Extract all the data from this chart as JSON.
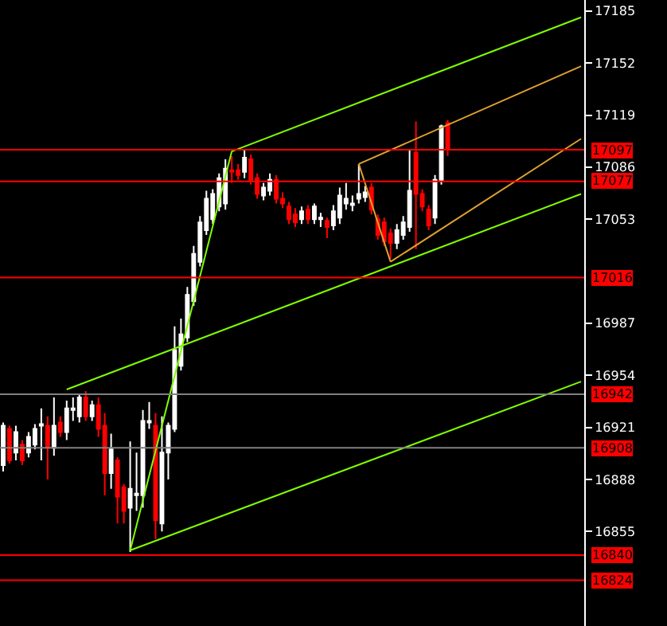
{
  "chart_data": {
    "type": "candlestick",
    "categories": [
      null,
      null,
      null,
      null,
      null,
      null,
      null,
      null,
      null,
      null,
      null,
      null,
      null,
      null,
      null,
      null,
      null,
      null,
      null,
      null,
      null,
      null,
      null,
      null,
      null,
      null,
      null,
      null,
      null,
      null,
      null,
      null,
      null,
      null,
      null,
      null,
      null,
      null,
      null,
      null,
      null,
      null,
      null,
      null,
      null,
      null,
      null,
      null,
      null,
      null,
      null,
      null,
      null,
      null,
      null,
      null,
      null,
      null,
      null,
      null,
      null,
      null,
      null,
      null,
      null,
      null,
      null,
      null,
      null,
      null,
      null,
      null,
      null,
      null,
      null,
      null,
      null,
      null,
      null,
      null,
      null,
      null,
      null,
      null,
      null,
      null,
      null,
      null,
      null,
      null,
      null,
      null
    ],
    "colors": [
      "#ffffff",
      "#ff0000",
      "#ffffff",
      "#ff0000",
      "#ffffff",
      "#ffffff",
      "#ffffff",
      "#ff0000",
      "#ffffff",
      "#ff0000",
      "#ffffff",
      "#ffffff",
      "#ffffff",
      "#ff0000",
      "#ffffff",
      "#ff0000",
      "#ff0000",
      "#ffffff",
      "#ff0000",
      "#ff0000",
      "#ffffff",
      "#ffffff",
      "#ffffff",
      "#ffffff",
      "#ff0000",
      "#ffffff",
      "#ffffff",
      "#ffffff",
      "#ffffff",
      "#ffffff",
      "#ffffff",
      "#ffffff",
      "#ffffff",
      "#ffffff",
      "#ffffff",
      "#ffffff",
      "#ff0000",
      "#ff0000",
      "#ffffff",
      "#ff0000",
      "#ff0000",
      "#ffffff",
      "#ffffff",
      "#ff0000",
      "#ff0000",
      "#ff0000",
      "#ff0000",
      "#ffffff",
      "#ff0000",
      "#ffffff",
      "#ffffff",
      "#ff0000",
      "#ffffff",
      "#ffffff",
      "#ffffff",
      "#ffffff",
      "#ffffff",
      "#ffffff",
      "#ff0000",
      "#ff0000",
      "#ff0000",
      "#ff0000",
      "#ffffff",
      "#ffffff",
      "#ffffff",
      "#ff0000",
      "#ff0000",
      "#ff0000",
      "#ffffff",
      "#ffffff",
      "#ff0000",
      null,
      null,
      null,
      null,
      null,
      null,
      null,
      null,
      null,
      null,
      null,
      null,
      null,
      null,
      null,
      null,
      null,
      null,
      null,
      null,
      null
    ],
    "ohlc": [
      [
        16897,
        16924,
        16893,
        16922
      ],
      [
        16920,
        16922,
        16898,
        16900
      ],
      [
        16905,
        16922,
        16900,
        16918
      ],
      [
        16910,
        16913,
        16897,
        16900
      ],
      [
        16905,
        16918,
        16902,
        16915
      ],
      [
        16910,
        16923,
        16907,
        16920
      ],
      [
        16922,
        16933,
        16900,
        16923
      ],
      [
        16922,
        16928,
        16888,
        16908
      ],
      [
        16908,
        16940,
        16903,
        16922
      ],
      [
        16924,
        16928,
        16915,
        16918
      ],
      [
        16918,
        16938,
        16913,
        16933
      ],
      [
        16932,
        16940,
        16925,
        16933
      ],
      [
        16928,
        16942,
        16924,
        16940
      ],
      [
        16940,
        16944,
        16925,
        16928
      ],
      [
        16928,
        16938,
        16925,
        16935
      ],
      [
        16935,
        16940,
        16915,
        16920
      ],
      [
        16922,
        16930,
        16878,
        16892
      ],
      [
        16892,
        16917,
        16882,
        16907
      ],
      [
        16900,
        16902,
        16860,
        16877
      ],
      [
        16883,
        16885,
        16860,
        16868
      ],
      [
        16870,
        16912,
        16842,
        16882
      ],
      [
        16878,
        16905,
        16868,
        16879
      ],
      [
        16878,
        16932,
        16870,
        16925
      ],
      [
        16924,
        16937,
        16920,
        16925
      ],
      [
        16922,
        16930,
        16850,
        16862
      ],
      [
        16860,
        16928,
        16855,
        16905
      ],
      [
        16905,
        16924,
        16888,
        16922
      ],
      [
        16920,
        16985,
        16918,
        16970
      ],
      [
        16960,
        16990,
        16957,
        16980
      ],
      [
        16978,
        17010,
        16975,
        17005
      ],
      [
        17001,
        17036,
        16998,
        17031
      ],
      [
        17026,
        17055,
        17023,
        17051
      ],
      [
        17046,
        17071,
        17043,
        17066
      ],
      [
        17053,
        17072,
        17050,
        17069
      ],
      [
        17061,
        17082,
        17058,
        17079
      ],
      [
        17063,
        17091,
        17059,
        17085
      ],
      [
        17084,
        17093,
        17076,
        17083
      ],
      [
        17084,
        17088,
        17078,
        17081
      ],
      [
        17083,
        17097,
        17079,
        17092
      ],
      [
        17091,
        17094,
        17075,
        17078
      ],
      [
        17079,
        17082,
        17066,
        17069
      ],
      [
        17068,
        17076,
        17065,
        17073
      ],
      [
        17071,
        17082,
        17068,
        17078
      ],
      [
        17078,
        17081,
        17063,
        17066
      ],
      [
        17066,
        17070,
        17060,
        17063
      ],
      [
        17061,
        17064,
        17050,
        17053
      ],
      [
        17056,
        17060,
        17048,
        17051
      ],
      [
        17053,
        17061,
        17050,
        17058
      ],
      [
        17059,
        17062,
        17050,
        17053
      ],
      [
        17053,
        17063,
        17050,
        17061
      ],
      [
        17053,
        17057,
        17048,
        17054
      ],
      [
        17052,
        17054,
        17041,
        17048
      ],
      [
        17049,
        17062,
        17046,
        17058
      ],
      [
        17054,
        17073,
        17050,
        17068
      ],
      [
        17063,
        17076,
        17059,
        17066
      ],
      [
        17062,
        17068,
        17058,
        17063
      ],
      [
        17066,
        17088,
        17063,
        17069
      ],
      [
        17067,
        17074,
        17064,
        17070
      ],
      [
        17073,
        17076,
        17056,
        17059
      ],
      [
        17053,
        17056,
        17040,
        17043
      ],
      [
        17051,
        17054,
        17036,
        17039
      ],
      [
        17044,
        17047,
        17028,
        17038
      ],
      [
        17038,
        17050,
        17034,
        17046
      ],
      [
        17043,
        17055,
        17040,
        17051
      ],
      [
        17048,
        17097,
        17045,
        17071
      ],
      [
        17095,
        17115,
        17034,
        17069
      ],
      [
        17069,
        17072,
        17058,
        17061
      ],
      [
        17059,
        17062,
        17046,
        17049
      ],
      [
        17054,
        17081,
        17050,
        17078
      ],
      [
        17078,
        17113,
        17075,
        17112
      ],
      [
        17114,
        17116,
        17093,
        17097
      ],
      null,
      null,
      null,
      null,
      null,
      null,
      null,
      null,
      null,
      null,
      null,
      null,
      null,
      null,
      null,
      null,
      null,
      null,
      null,
      null,
      null
    ],
    "series": [
      {
        "type": "line",
        "color": "#7fff00",
        "values": [
          null,
          null,
          null,
          null,
          null,
          null,
          null,
          null,
          null,
          null,
          null,
          null,
          null,
          null,
          null,
          null,
          null,
          null,
          null,
          null,
          16843,
          null,
          null,
          null,
          null,
          null,
          null,
          null,
          null,
          null,
          null,
          null,
          null,
          null,
          null,
          null,
          17096,
          null,
          null,
          null,
          null,
          null,
          null,
          null,
          null,
          null,
          null,
          null,
          null,
          null,
          null,
          null,
          null,
          null,
          null,
          null,
          null,
          null,
          null,
          null,
          null,
          null,
          null,
          null,
          null,
          null,
          null,
          null,
          null,
          null,
          null,
          null,
          null,
          null,
          null,
          null,
          null,
          null,
          null,
          null,
          null,
          null,
          null,
          null,
          null,
          null,
          null,
          null,
          null,
          null,
          null,
          null
        ]
      },
      {
        "type": "line",
        "color": "#7fff00",
        "values": [
          null,
          null,
          null,
          null,
          null,
          null,
          null,
          null,
          null,
          null,
          null,
          null,
          null,
          null,
          null,
          null,
          null,
          null,
          null,
          null,
          null,
          null,
          null,
          null,
          null,
          null,
          null,
          null,
          null,
          null,
          null,
          null,
          null,
          null,
          null,
          null,
          17096,
          null,
          null,
          null,
          null,
          null,
          null,
          null,
          null,
          null,
          null,
          null,
          null,
          null,
          null,
          null,
          null,
          null,
          null,
          null,
          null,
          null,
          null,
          null,
          null,
          null,
          null,
          null,
          null,
          null,
          null,
          null,
          null,
          null,
          null,
          null,
          null,
          null,
          null,
          null,
          null,
          null,
          null,
          null,
          null,
          null,
          null,
          null,
          null,
          null,
          null,
          null,
          null,
          null,
          null,
          17181
        ]
      },
      {
        "type": "line",
        "color": "#7fff00",
        "values": [
          null,
          null,
          null,
          null,
          null,
          null,
          null,
          null,
          null,
          null,
          null,
          null,
          null,
          null,
          null,
          null,
          null,
          null,
          null,
          null,
          16843,
          null,
          null,
          null,
          null,
          null,
          null,
          null,
          null,
          null,
          null,
          null,
          null,
          null,
          null,
          null,
          null,
          null,
          null,
          null,
          null,
          null,
          null,
          null,
          null,
          null,
          null,
          null,
          null,
          null,
          null,
          null,
          null,
          null,
          null,
          null,
          null,
          null,
          null,
          null,
          null,
          null,
          null,
          null,
          null,
          null,
          null,
          null,
          null,
          null,
          null,
          null,
          null,
          null,
          null,
          null,
          null,
          null,
          null,
          null,
          null,
          null,
          null,
          null,
          null,
          null,
          null,
          null,
          null,
          null,
          null,
          16950
        ]
      },
      {
        "type": "line",
        "color": "#7fff00",
        "values": [
          null,
          null,
          null,
          null,
          null,
          null,
          null,
          null,
          null,
          null,
          16945,
          null,
          null,
          null,
          null,
          null,
          null,
          null,
          null,
          null,
          null,
          null,
          null,
          null,
          null,
          null,
          null,
          null,
          null,
          null,
          null,
          null,
          null,
          null,
          null,
          null,
          null,
          null,
          null,
          null,
          null,
          null,
          null,
          null,
          null,
          null,
          null,
          null,
          null,
          null,
          null,
          null,
          null,
          null,
          null,
          null,
          null,
          null,
          null,
          null,
          null,
          null,
          null,
          null,
          null,
          null,
          null,
          null,
          null,
          null,
          null,
          null,
          null,
          null,
          null,
          null,
          null,
          null,
          null,
          null,
          null,
          null,
          null,
          null,
          null,
          null,
          null,
          null,
          null,
          null,
          null,
          17069
        ]
      },
      {
        "type": "line",
        "color": "#e0a030",
        "values": [
          null,
          null,
          null,
          null,
          null,
          null,
          null,
          null,
          null,
          null,
          null,
          null,
          null,
          null,
          null,
          null,
          null,
          null,
          null,
          null,
          null,
          null,
          null,
          null,
          null,
          null,
          null,
          null,
          null,
          null,
          null,
          null,
          null,
          null,
          null,
          null,
          null,
          null,
          null,
          null,
          null,
          null,
          null,
          null,
          null,
          null,
          null,
          null,
          null,
          null,
          null,
          null,
          null,
          null,
          null,
          null,
          17088,
          null,
          null,
          null,
          null,
          null,
          null,
          null,
          null,
          null,
          null,
          null,
          null,
          null,
          null,
          null,
          null,
          null,
          null,
          null,
          null,
          null,
          null,
          null,
          null,
          null,
          null,
          null,
          null,
          null,
          null,
          null,
          null,
          null,
          null,
          17150
        ]
      },
      {
        "type": "line",
        "color": "#e0a030",
        "values": [
          null,
          null,
          null,
          null,
          null,
          null,
          null,
          null,
          null,
          null,
          null,
          null,
          null,
          null,
          null,
          null,
          null,
          null,
          null,
          null,
          null,
          null,
          null,
          null,
          null,
          null,
          null,
          null,
          null,
          null,
          null,
          null,
          null,
          null,
          null,
          null,
          null,
          null,
          null,
          null,
          null,
          null,
          null,
          null,
          null,
          null,
          null,
          null,
          null,
          null,
          null,
          null,
          null,
          null,
          null,
          null,
          null,
          null,
          null,
          null,
          null,
          17026,
          null,
          null,
          null,
          null,
          null,
          null,
          null,
          null,
          null,
          null,
          null,
          null,
          null,
          null,
          null,
          null,
          null,
          null,
          null,
          null,
          null,
          null,
          null,
          null,
          null,
          null,
          null,
          null,
          null,
          17104
        ]
      },
      {
        "type": "line",
        "color": "#e0a030",
        "values": [
          null,
          null,
          null,
          null,
          null,
          null,
          null,
          null,
          null,
          null,
          null,
          null,
          null,
          null,
          null,
          null,
          null,
          null,
          null,
          null,
          null,
          null,
          null,
          null,
          null,
          null,
          null,
          null,
          null,
          null,
          null,
          null,
          null,
          null,
          null,
          null,
          null,
          null,
          null,
          null,
          null,
          null,
          null,
          null,
          null,
          null,
          null,
          null,
          null,
          null,
          null,
          null,
          null,
          null,
          null,
          null,
          17088,
          null,
          null,
          null,
          null,
          17026,
          null,
          null,
          null,
          null,
          null,
          null,
          null,
          null,
          null,
          null,
          null,
          null,
          null,
          null,
          null,
          null,
          null,
          null,
          null,
          null,
          null,
          null,
          null,
          null,
          null,
          null,
          null,
          null,
          null,
          null
        ]
      }
    ],
    "ylim": [
      16795,
      17192
    ],
    "yticks": [
      16855,
      16888,
      16921,
      16954,
      16987,
      17053,
      17086,
      17119,
      17152,
      17185
    ],
    "ref_lines": [
      {
        "axis": "y",
        "value": 17097,
        "label": "17097",
        "color": "#ff0000"
      },
      {
        "axis": "y",
        "value": 17077,
        "label": "17077",
        "color": "#ff0000"
      },
      {
        "axis": "y",
        "value": 17016,
        "label": "17016",
        "color": "#ff0000"
      },
      {
        "axis": "y",
        "value": 16942,
        "label": "16942",
        "color": "#808080"
      },
      {
        "axis": "y",
        "value": 16908,
        "label": "16908",
        "color": "#808080"
      },
      {
        "axis": "y",
        "value": 16840,
        "label": "16840",
        "color": "#ff0000"
      },
      {
        "axis": "y",
        "value": 16824,
        "label": "16824",
        "color": "#ff0000"
      }
    ],
    "tick_labels": "y",
    "grid": false
  }
}
